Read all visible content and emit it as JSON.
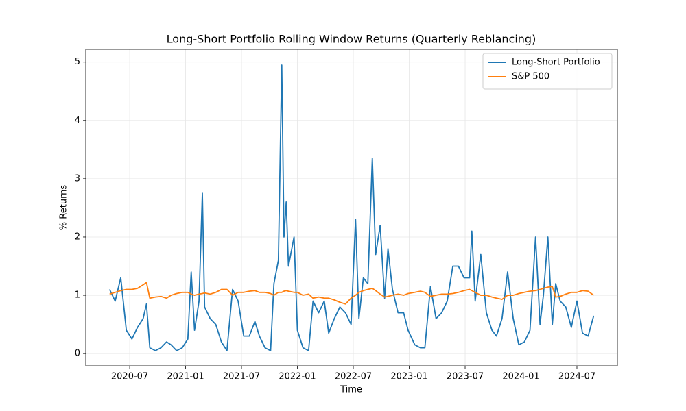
{
  "chart_data": {
    "type": "line",
    "title": "Long-Short Portfolio Rolling Window Returns (Quarterly Reblancing)",
    "x_label": "Time",
    "y_label": "% Returns",
    "x": [
      2020.32,
      2020.37,
      2020.42,
      2020.47,
      2020.52,
      2020.57,
      2020.62,
      2020.65,
      2020.68,
      2020.73,
      2020.78,
      2020.83,
      2020.87,
      2020.92,
      2020.97,
      2021.02,
      2021.05,
      2021.08,
      2021.12,
      2021.15,
      2021.17,
      2021.22,
      2021.27,
      2021.32,
      2021.37,
      2021.42,
      2021.47,
      2021.52,
      2021.57,
      2021.62,
      2021.66,
      2021.71,
      2021.76,
      2021.79,
      2021.83,
      2021.86,
      2021.88,
      2021.9,
      2021.92,
      2021.97,
      2022.0,
      2022.05,
      2022.1,
      2022.14,
      2022.19,
      2022.24,
      2022.28,
      2022.33,
      2022.38,
      2022.43,
      2022.48,
      2022.52,
      2022.55,
      2022.59,
      2022.63,
      2022.67,
      2022.7,
      2022.74,
      2022.78,
      2022.81,
      2022.85,
      2022.9,
      2022.95,
      2022.99,
      2023.05,
      2023.1,
      2023.14,
      2023.19,
      2023.24,
      2023.29,
      2023.34,
      2023.39,
      2023.44,
      2023.49,
      2023.54,
      2023.56,
      2023.59,
      2023.64,
      2023.69,
      2023.74,
      2023.78,
      2023.83,
      2023.88,
      2023.93,
      2023.98,
      2024.03,
      2024.08,
      2024.13,
      2024.17,
      2024.2,
      2024.24,
      2024.28,
      2024.31,
      2024.35,
      2024.4,
      2024.45,
      2024.5,
      2024.55,
      2024.6,
      2024.65
    ],
    "series": [
      {
        "name": "Long-Short Portfolio",
        "color": "#1f77b4",
        "values": [
          1.1,
          0.9,
          1.3,
          0.4,
          0.25,
          0.45,
          0.6,
          0.85,
          0.1,
          0.05,
          0.1,
          0.2,
          0.15,
          0.05,
          0.1,
          0.25,
          1.4,
          0.4,
          0.9,
          2.75,
          0.8,
          0.6,
          0.5,
          0.2,
          0.05,
          1.1,
          0.9,
          0.3,
          0.3,
          0.55,
          0.3,
          0.1,
          0.05,
          1.2,
          1.6,
          4.95,
          2.0,
          2.6,
          1.5,
          2.0,
          0.4,
          0.1,
          0.05,
          0.9,
          0.7,
          0.9,
          0.35,
          0.6,
          0.8,
          0.7,
          0.5,
          2.3,
          0.6,
          1.3,
          1.2,
          3.35,
          1.7,
          2.2,
          0.95,
          1.8,
          1.1,
          0.7,
          0.7,
          0.4,
          0.15,
          0.1,
          0.1,
          1.15,
          0.6,
          0.7,
          0.9,
          1.5,
          1.5,
          1.3,
          1.3,
          2.1,
          0.9,
          1.7,
          0.7,
          0.4,
          0.3,
          0.6,
          1.4,
          0.6,
          0.15,
          0.2,
          0.4,
          2.0,
          0.5,
          1.0,
          2.0,
          0.5,
          1.2,
          0.9,
          0.8,
          0.45,
          0.9,
          0.35,
          0.3,
          0.65
        ]
      },
      {
        "name": "S&P 500",
        "color": "#ff7f0e",
        "values": [
          1.02,
          1.05,
          1.08,
          1.1,
          1.1,
          1.12,
          1.18,
          1.22,
          0.95,
          0.97,
          0.98,
          0.95,
          1.0,
          1.03,
          1.05,
          1.05,
          1.02,
          1.0,
          1.02,
          1.03,
          1.04,
          1.02,
          1.05,
          1.1,
          1.1,
          1.0,
          1.05,
          1.05,
          1.07,
          1.08,
          1.05,
          1.05,
          1.03,
          1.0,
          1.05,
          1.05,
          1.07,
          1.08,
          1.07,
          1.05,
          1.05,
          1.0,
          1.02,
          0.95,
          0.97,
          0.95,
          0.95,
          0.92,
          0.88,
          0.85,
          0.95,
          1.0,
          1.05,
          1.08,
          1.1,
          1.12,
          1.08,
          1.02,
          0.97,
          0.98,
          1.0,
          1.02,
          1.0,
          1.03,
          1.05,
          1.07,
          1.05,
          0.98,
          1.0,
          1.02,
          1.02,
          1.03,
          1.05,
          1.08,
          1.1,
          1.08,
          1.05,
          1.0,
          1.0,
          0.97,
          0.95,
          0.93,
          1.0,
          1.0,
          1.03,
          1.05,
          1.07,
          1.08,
          1.1,
          1.12,
          1.14,
          1.15,
          0.97,
          0.98,
          1.02,
          1.05,
          1.05,
          1.08,
          1.07,
          1.0
        ]
      }
    ],
    "xlim": [
      2020.107,
      2024.862
    ],
    "xticks": [
      {
        "value": 2020.5,
        "label": "2020-07"
      },
      {
        "value": 2021.0,
        "label": "2021-01"
      },
      {
        "value": 2021.5,
        "label": "2021-07"
      },
      {
        "value": 2022.0,
        "label": "2022-01"
      },
      {
        "value": 2022.5,
        "label": "2022-07"
      },
      {
        "value": 2023.0,
        "label": "2023-01"
      },
      {
        "value": 2023.5,
        "label": "2023-07"
      },
      {
        "value": 2024.0,
        "label": "2024-01"
      },
      {
        "value": 2024.5,
        "label": "2024-07"
      }
    ],
    "ylim": [
      -0.21,
      5.22
    ],
    "yticks": [
      0,
      1,
      2,
      3,
      4,
      5
    ],
    "grid": true,
    "legend": "upper right"
  }
}
